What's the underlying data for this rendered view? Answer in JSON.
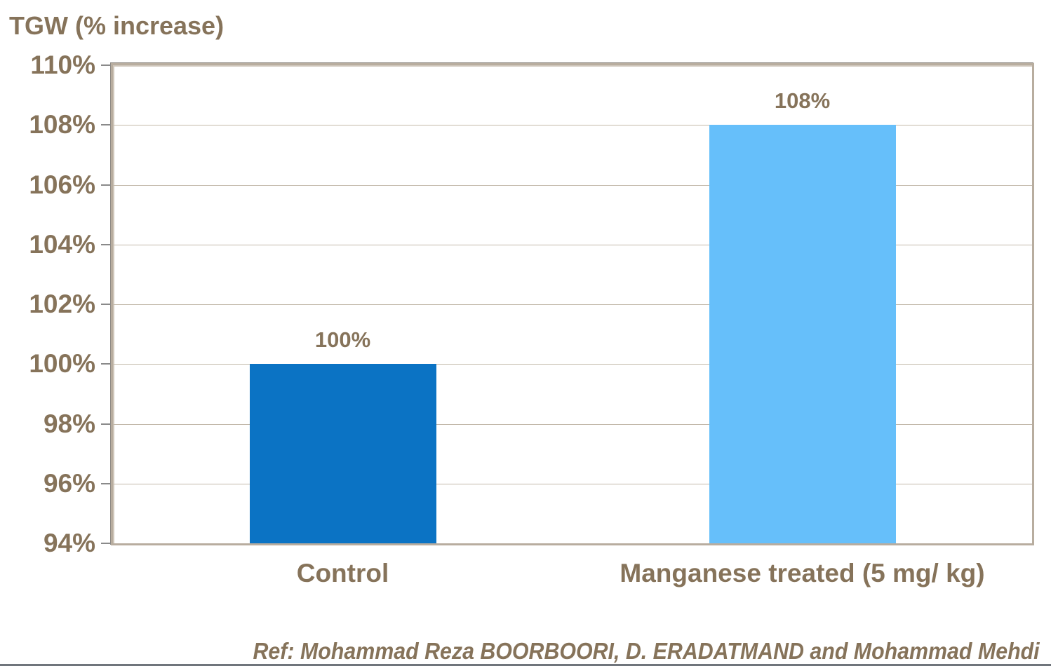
{
  "title": "TGW (% increase)",
  "reference": "Ref: Mohammad Reza BOORBOORI, D. ERADATMAND and Mohammad Mehdi",
  "colors": {
    "label_text": "#86735A",
    "bar_control": "#0B73C4",
    "bar_treated": "#66BFFA",
    "gridline": "#C2B8A9",
    "plot_border": "#B8AD9F",
    "axis_tick": "#8A8A8A",
    "bottom_rule": "#70757C"
  },
  "chart_data": {
    "type": "bar",
    "title": "TGW (% increase)",
    "categories": [
      "Control",
      "Manganese treated (5 mg/ kg)"
    ],
    "values": [
      100,
      108
    ],
    "data_labels": [
      "100%",
      "108%"
    ],
    "series_colors": [
      "#0B73C4",
      "#66BFFA"
    ],
    "xlabel": "",
    "ylabel": "TGW (% increase)",
    "ylim": [
      94,
      110
    ],
    "ytick_step": 2,
    "ytick_labels": [
      "94%",
      "96%",
      "98%",
      "100%",
      "102%",
      "104%",
      "106%",
      "108%",
      "110%"
    ],
    "grid": true,
    "legend": false,
    "annotations": [
      "Ref: Mohammad Reza BOORBOORI, D. ERADATMAND and Mohammad Mehdi"
    ]
  }
}
